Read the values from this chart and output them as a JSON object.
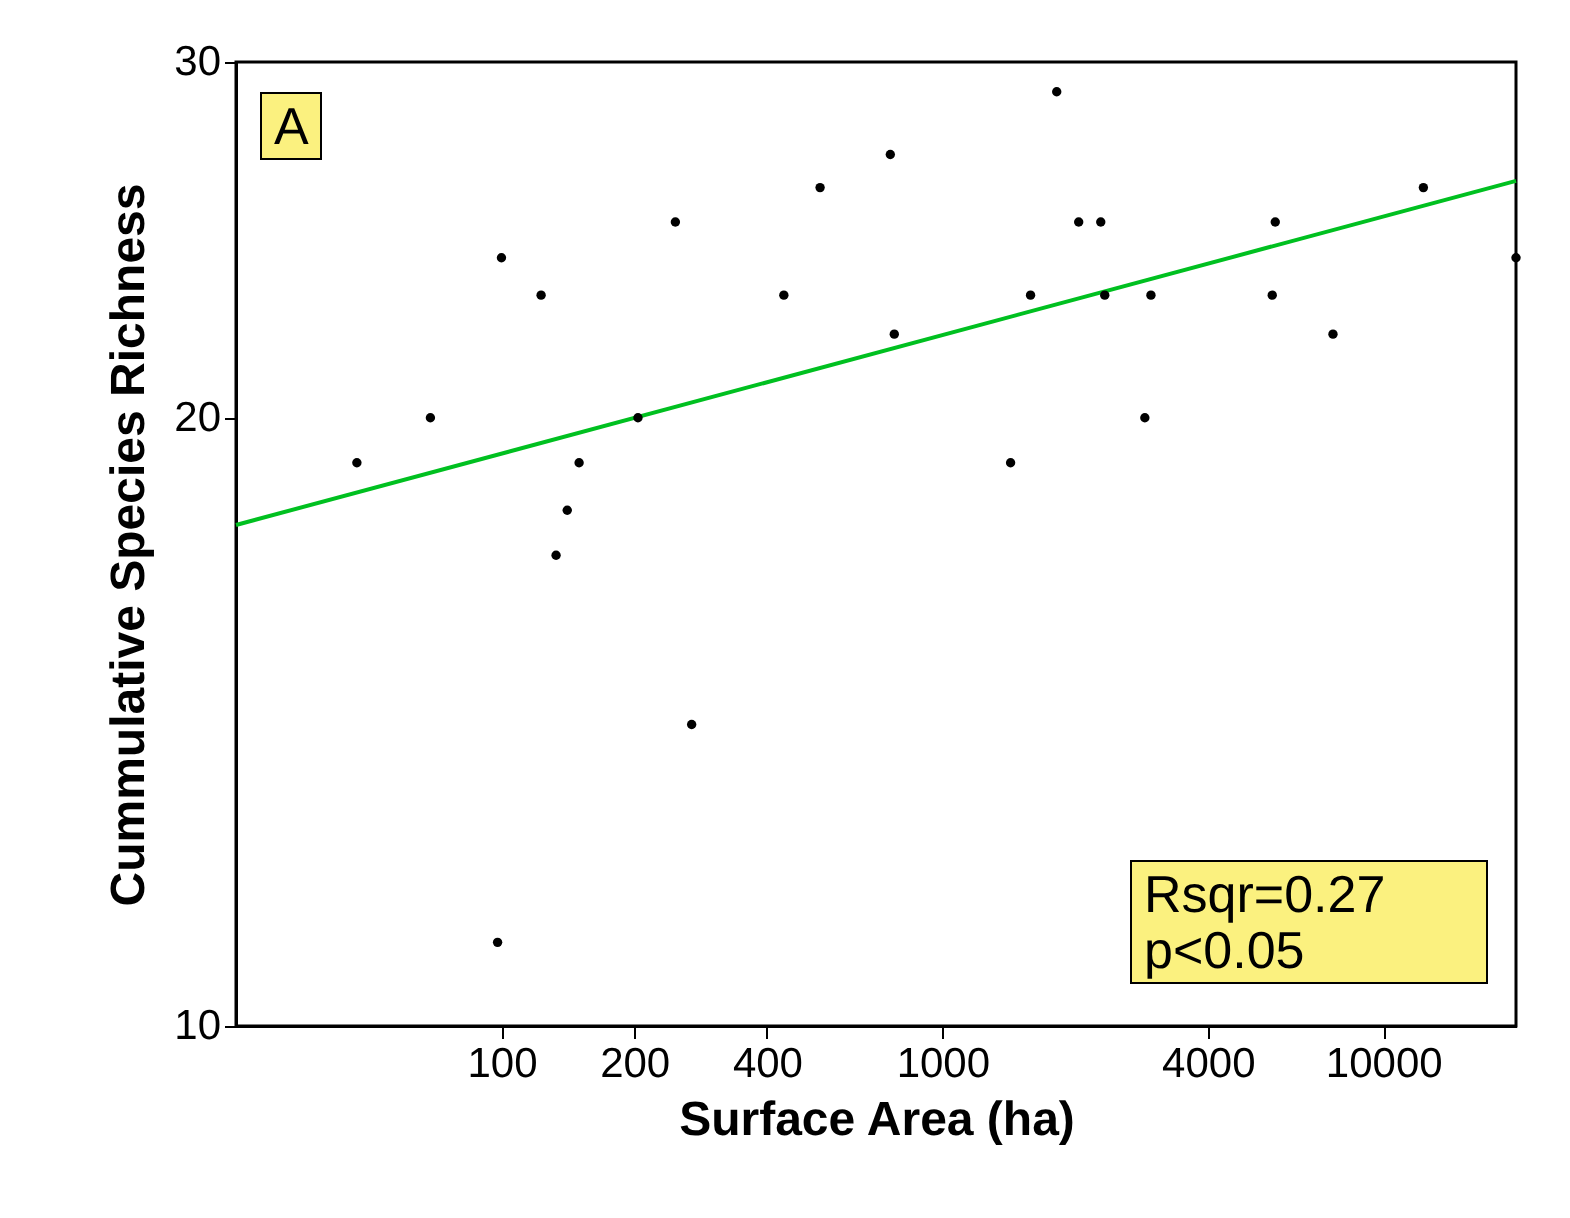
{
  "chart_data": {
    "type": "scatter",
    "xlabel": "Surface Area (ha)",
    "ylabel": "Cummulative Species Richness",
    "log": "xy",
    "grid": false,
    "xlim": [
      25,
      20000
    ],
    "xticks": [
      100,
      200,
      400,
      1000,
      4000,
      10000
    ],
    "ylim": [
      10,
      30
    ],
    "yticks": [
      10,
      20,
      30
    ],
    "annotations": [
      "A",
      "Rsqr=0.27\np<0.05"
    ],
    "series": [
      {
        "marker": "circle",
        "color": "#000000",
        "x": [
          47,
          69,
          100,
          98,
          123,
          133,
          141,
          150,
          204,
          248,
          270,
          437,
          528,
          762,
          778,
          1428,
          1585,
          1817,
          2038,
          2287,
          2335,
          2879,
          2972,
          5689,
          5600,
          7690,
          12330,
          20000
        ],
        "values": [
          19,
          20,
          24,
          11,
          23,
          17.1,
          18,
          19,
          20,
          25,
          14.1,
          23,
          26,
          27,
          22,
          19,
          23,
          29,
          25,
          25,
          23,
          20,
          23,
          25,
          23,
          22,
          26,
          24
        ]
      },
      {
        "type": "line",
        "color": "#00c020",
        "line_style": "solid",
        "x": [
          25,
          20000
        ],
        "values": [
          17.7,
          26.2
        ]
      }
    ]
  }
}
